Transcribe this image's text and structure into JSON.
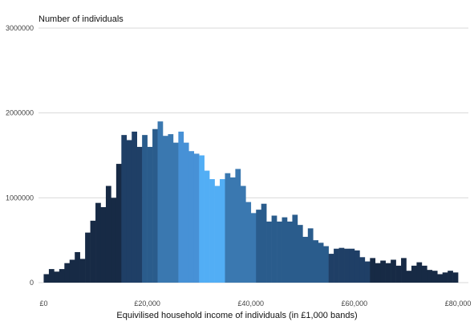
{
  "chart_data": {
    "type": "bar",
    "title": "",
    "ylabel": "Number of individuals",
    "xlabel": "Equivilised household income of individuals (in £1,000 bands)",
    "ylim": [
      0,
      3000000
    ],
    "xlim": [
      -1,
      82
    ],
    "yticks": [
      0,
      1000000,
      2000000,
      3000000
    ],
    "ytick_labels": [
      "0",
      "1000000",
      "2000000",
      "3000000"
    ],
    "xticks": [
      0,
      20,
      40,
      60,
      80
    ],
    "xtick_labels": [
      "£0",
      "£20,000",
      "£40,000",
      "£60,000",
      "£80,000"
    ],
    "grid": "horizontal",
    "band_colors": {
      "dark": "#172a45",
      "navy": "#1f3f66",
      "mid": "#2a5c8c",
      "steel": "#3a78b0",
      "blue": "#4791d6",
      "light": "#52aef5"
    },
    "x": [
      0,
      1,
      2,
      3,
      4,
      5,
      6,
      7,
      8,
      9,
      10,
      11,
      12,
      13,
      14,
      15,
      16,
      17,
      18,
      19,
      20,
      21,
      22,
      23,
      24,
      25,
      26,
      27,
      28,
      29,
      30,
      31,
      32,
      33,
      34,
      35,
      36,
      37,
      38,
      39,
      40,
      41,
      42,
      43,
      44,
      45,
      46,
      47,
      48,
      49,
      50,
      51,
      52,
      53,
      54,
      55,
      56,
      57,
      58,
      59,
      60,
      61,
      62,
      63,
      64,
      65,
      66,
      67,
      68,
      69,
      70,
      71,
      72,
      73,
      74,
      75,
      76,
      77,
      78,
      79
    ],
    "values": [
      100000,
      160000,
      130000,
      160000,
      230000,
      270000,
      360000,
      280000,
      590000,
      730000,
      940000,
      890000,
      1140000,
      1000000,
      1400000,
      1740000,
      1680000,
      1780000,
      1600000,
      1740000,
      1600000,
      1810000,
      1900000,
      1730000,
      1750000,
      1650000,
      1780000,
      1650000,
      1550000,
      1520000,
      1500000,
      1320000,
      1220000,
      1140000,
      1220000,
      1290000,
      1240000,
      1340000,
      1140000,
      950000,
      820000,
      860000,
      930000,
      720000,
      790000,
      720000,
      770000,
      720000,
      800000,
      680000,
      540000,
      640000,
      500000,
      470000,
      430000,
      340000,
      400000,
      410000,
      400000,
      400000,
      380000,
      300000,
      250000,
      290000,
      230000,
      260000,
      230000,
      270000,
      200000,
      290000,
      140000,
      200000,
      240000,
      200000,
      150000,
      140000,
      100000,
      120000,
      140000,
      120000
    ],
    "colors": [
      "dark",
      "dark",
      "dark",
      "dark",
      "dark",
      "dark",
      "dark",
      "dark",
      "dark",
      "dark",
      "dark",
      "dark",
      "dark",
      "dark",
      "dark",
      "navy",
      "navy",
      "navy",
      "navy",
      "mid",
      "mid",
      "mid",
      "steel",
      "steel",
      "steel",
      "steel",
      "blue",
      "blue",
      "blue",
      "blue",
      "light",
      "light",
      "light",
      "light",
      "light",
      "steel",
      "steel",
      "steel",
      "steel",
      "steel",
      "steel",
      "mid",
      "mid",
      "mid",
      "mid",
      "mid",
      "mid",
      "mid",
      "mid",
      "mid",
      "mid",
      "mid",
      "mid",
      "mid",
      "mid",
      "navy",
      "navy",
      "navy",
      "navy",
      "navy",
      "navy",
      "navy",
      "navy",
      "dark",
      "dark",
      "dark",
      "dark",
      "dark",
      "dark",
      "dark",
      "dark",
      "dark",
      "dark",
      "dark",
      "dark",
      "dark",
      "dark",
      "dark",
      "dark",
      "dark"
    ]
  }
}
